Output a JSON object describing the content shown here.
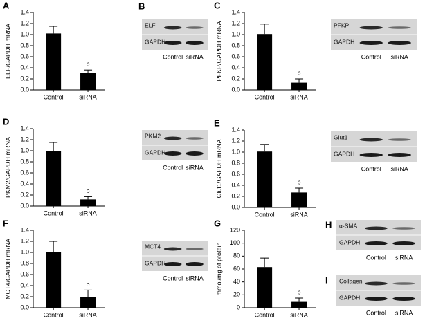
{
  "chart_data": [
    {
      "type": "bar",
      "panel": "A",
      "ylabel": "ELF/GAPDH mRNA",
      "categories": [
        "Control",
        "siRNA"
      ],
      "values": [
        1.02,
        0.3
      ],
      "errors": [
        0.13,
        0.06
      ],
      "markers": [
        null,
        "b"
      ],
      "color": "#000000",
      "ylim": [
        0,
        1.4
      ],
      "yticks": [
        {
          "value": 0,
          "label": "0.0"
        },
        0.2,
        0.4,
        0.6,
        0.8,
        {
          "value": 1,
          "label": "1.0"
        },
        1.2,
        1.4
      ]
    },
    {
      "type": "bar",
      "panel": "C",
      "ylabel": "PFKP/GAPDH mRNA",
      "categories": [
        "Control",
        "siRNA"
      ],
      "values": [
        1.01,
        0.13
      ],
      "errors": [
        0.18,
        0.07
      ],
      "markers": [
        null,
        "b"
      ],
      "color": "#000000",
      "ylim": [
        0,
        1.4
      ],
      "yticks": [
        {
          "value": 0,
          "label": "0.0"
        },
        0.2,
        0.4,
        0.6,
        0.8,
        {
          "value": 1,
          "label": "1.0"
        },
        1.2,
        1.4
      ]
    },
    {
      "type": "bar",
      "panel": "D",
      "ylabel": "PKM2/GAPDH mRNA",
      "categories": [
        "Control",
        "siRNA"
      ],
      "values": [
        1.0,
        0.12
      ],
      "errors": [
        0.15,
        0.05
      ],
      "markers": [
        null,
        "b"
      ],
      "color": "#000000",
      "ylim": [
        0,
        1.4
      ],
      "yticks": [
        {
          "value": 0,
          "label": "0.0"
        },
        0.2,
        0.4,
        0.6,
        0.8,
        {
          "value": 1,
          "label": "1.0"
        },
        1.2,
        1.4
      ]
    },
    {
      "type": "bar",
      "panel": "E",
      "ylabel": "Glut1/GAPDH mRNA",
      "categories": [
        "Control",
        "siRNA"
      ],
      "values": [
        1.01,
        0.27
      ],
      "errors": [
        0.13,
        0.08
      ],
      "markers": [
        null,
        "b"
      ],
      "color": "#000000",
      "ylim": [
        0,
        1.4
      ],
      "yticks": [
        {
          "value": 0,
          "label": "0.0"
        },
        0.2,
        0.4,
        0.6,
        0.8,
        {
          "value": 1,
          "label": "1.0"
        },
        1.2,
        1.4
      ]
    },
    {
      "type": "bar",
      "panel": "F",
      "ylabel": "MCT4/GAPDH mRNA",
      "categories": [
        "Control",
        "siRNA"
      ],
      "values": [
        1.0,
        0.2
      ],
      "errors": [
        0.2,
        0.12
      ],
      "markers": [
        null,
        "b"
      ],
      "color": "#000000",
      "ylim": [
        0,
        1.4
      ],
      "yticks": [
        {
          "value": 0,
          "label": "0.0"
        },
        0.2,
        0.4,
        0.6,
        0.8,
        {
          "value": 1,
          "label": "1.0"
        },
        1.2,
        1.4
      ]
    },
    {
      "type": "bar",
      "panel": "G",
      "ylabel": "mmol/mg of protein",
      "categories": [
        "Control",
        "siRNA"
      ],
      "values": [
        63,
        9
      ],
      "errors": [
        14,
        6
      ],
      "markers": [
        null,
        "b"
      ],
      "color": "#000000",
      "ylim": [
        0,
        120
      ],
      "yticks": [
        0,
        20,
        40,
        60,
        80,
        100,
        120
      ]
    }
  ],
  "blots": [
    {
      "panel": "B",
      "rows": [
        "ELF",
        "GAPDH"
      ],
      "lanes": [
        "Control",
        "siRNA"
      ]
    },
    {
      "rows": [
        "PFKP",
        "GAPDH"
      ],
      "lanes": [
        "Control",
        "siRNA"
      ]
    },
    {
      "rows": [
        "PKM2",
        "GAPDH"
      ],
      "lanes": [
        "Control",
        "siRNA"
      ]
    },
    {
      "rows": [
        "Glut1",
        "GAPDH"
      ],
      "lanes": [
        "Control",
        "siRNA"
      ]
    },
    {
      "rows": [
        "MCT4",
        "GAPDH"
      ],
      "lanes": [
        "Control",
        "siRNA"
      ]
    },
    {
      "panel": "H",
      "rows": [
        "α-SMA",
        "GAPDH"
      ],
      "lanes": [
        "Control",
        "siRNA"
      ]
    },
    {
      "panel": "I",
      "rows": [
        "Collagen",
        "GAPDH"
      ],
      "lanes": [
        "Control",
        "siRNA"
      ]
    }
  ]
}
